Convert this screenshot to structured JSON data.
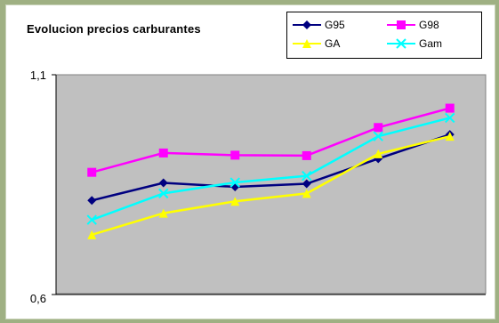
{
  "chart_data": {
    "type": "line",
    "title": "Evolucion precios carburantes",
    "xlabel": "",
    "ylabel": "",
    "ylim": [
      0.6,
      1.1
    ],
    "y_ticks": [
      "1,1",
      "0,6"
    ],
    "grid": false,
    "legend_position": "top-right",
    "plot_background": "#c0c0c0",
    "x": [
      1,
      2,
      3,
      4,
      5,
      6
    ],
    "series": [
      {
        "name": "G95",
        "color": "#000080",
        "marker": "diamond",
        "values": [
          0.814,
          0.854,
          0.845,
          0.852,
          0.909,
          0.964
        ]
      },
      {
        "name": "G98",
        "color": "#ff00ff",
        "marker": "square",
        "values": [
          0.878,
          0.922,
          0.917,
          0.916,
          0.98,
          1.024
        ]
      },
      {
        "name": "GA",
        "color": "#ffff00",
        "marker": "triangle",
        "values": [
          0.736,
          0.785,
          0.812,
          0.83,
          0.92,
          0.96
        ]
      },
      {
        "name": "Gam",
        "color": "#00ffff",
        "marker": "x",
        "values": [
          0.77,
          0.83,
          0.855,
          0.87,
          0.96,
          1.002
        ]
      }
    ]
  }
}
